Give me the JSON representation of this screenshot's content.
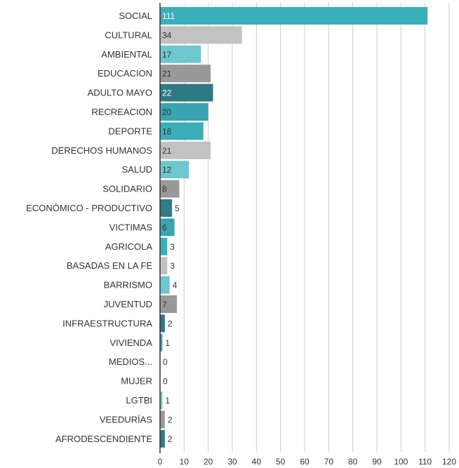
{
  "chart_data": {
    "type": "bar",
    "orientation": "horizontal",
    "title": "",
    "xlabel": "",
    "ylabel": "",
    "xlim": [
      0,
      120
    ],
    "x_ticks": [
      0,
      10,
      20,
      30,
      40,
      50,
      60,
      70,
      80,
      90,
      100,
      110,
      120
    ],
    "grid": true,
    "categories": [
      "SOCIAL",
      "CULTURAL",
      "AMBIENTAL",
      "EDUCACION",
      "ADULTO MAYO",
      "RECREACION",
      "DEPORTE",
      "DERECHOS HUMANOS",
      "SALUD",
      "SOLIDARIO",
      "ECONÓMICO - PRODUCTIVO",
      "VICTIMAS",
      "AGRICOLA",
      "BASADAS EN LA FE",
      "BARRISMO",
      "JUVENTUD",
      "INFRAESTRUCTURA",
      "VIVIENDA",
      "MEDIOS...",
      "MUJER",
      "LGTBI",
      "VEEDURÍAS",
      "AFRODESCENDIENTE"
    ],
    "values": [
      111,
      34,
      17,
      21,
      22,
      20,
      18,
      21,
      12,
      8,
      5,
      6,
      3,
      3,
      4,
      7,
      2,
      1,
      0,
      0,
      1,
      2,
      2
    ],
    "bar_colors": [
      "#3aafb9",
      "#c2c2c2",
      "#6ec7cf",
      "#999999",
      "#2e7b85",
      "#3aa4b0",
      "#3aafb9",
      "#c2c2c2",
      "#6ec7cf",
      "#999999",
      "#2e7b85",
      "#3aa4b0",
      "#3aafb9",
      "#c2c2c2",
      "#6ec7cf",
      "#999999",
      "#2e7b85",
      "#3aa4b0",
      "#3aafb9",
      "#c2c2c2",
      "#6ec7cf",
      "#999999",
      "#2e7b85"
    ],
    "label_colors": [
      "#ffffff",
      "#333333",
      "#333333",
      "#333333",
      "#ffffff",
      "#333333",
      "#333333",
      "#333333",
      "#333333",
      "#333333",
      "#ffffff",
      "#333333",
      "#333333",
      "#333333",
      "#333333",
      "#333333",
      "#333333",
      "#333333",
      "#333333",
      "#333333",
      "#333333",
      "#333333",
      "#333333"
    ]
  }
}
